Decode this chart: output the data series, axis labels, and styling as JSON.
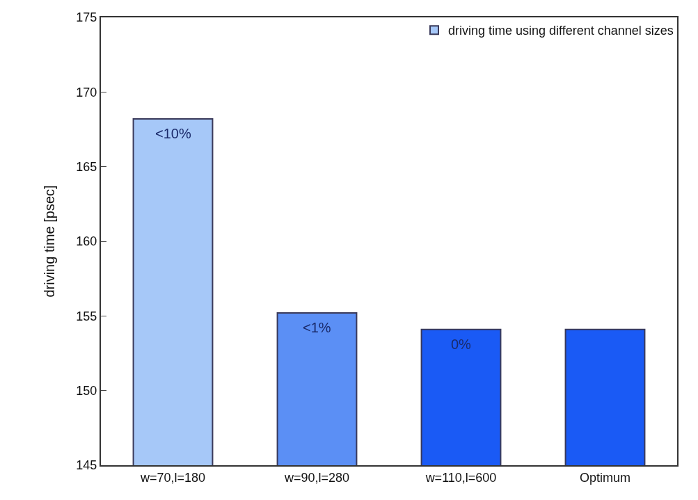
{
  "chart_data": {
    "type": "bar",
    "ylabel": "driving time [psec]",
    "categories": [
      "w=70,l=180",
      "w=90,l=280",
      "w=110,l=600",
      "Optimum"
    ],
    "series": [
      {
        "name": "driving time using different channel sizes",
        "colors": [
          "#a6c8f8",
          "#5b8ff5",
          "#1a5af5",
          "#1a5af5"
        ],
        "values": [
          168.2,
          155.2,
          154.1,
          154.1
        ]
      }
    ],
    "annotations": [
      {
        "text": "<10%",
        "x": "w=70,l=180",
        "y": 168.2
      },
      {
        "text": "<1%",
        "x": "w=90,l=280",
        "y": 155.2
      },
      {
        "text": "0%",
        "x": "w=110,l=600",
        "y": 154.1
      }
    ],
    "ylim": [
      145,
      175
    ],
    "yticks": [
      145,
      150,
      155,
      160,
      165,
      170,
      175
    ],
    "grid": false,
    "legend": "top right"
  }
}
